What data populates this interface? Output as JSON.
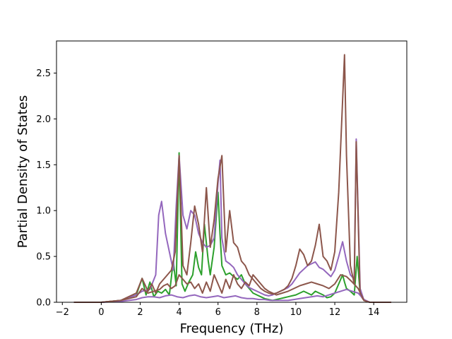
{
  "chart_data": {
    "type": "line",
    "title": "",
    "xlabel": "Frequency (THz)",
    "ylabel": "Partial Density of States",
    "xlim": [
      -2.3,
      15.7
    ],
    "ylim": [
      0,
      2.85
    ],
    "xticks": [
      -2,
      0,
      2,
      4,
      6,
      8,
      10,
      12,
      14
    ],
    "xtick_labels": [
      "−2",
      "0",
      "2",
      "4",
      "6",
      "8",
      "10",
      "12",
      "14"
    ],
    "yticks": [
      0.0,
      0.5,
      1.0,
      1.5,
      2.0,
      2.5
    ],
    "ytick_labels": [
      "0.0",
      "0.5",
      "1.0",
      "1.5",
      "2.0",
      "2.5"
    ],
    "grid": false,
    "legend": "none",
    "series": [
      {
        "color": "#2ca02c",
        "x": [
          -1.4,
          0.0,
          1.0,
          1.8,
          2.1,
          2.3,
          2.5,
          2.7,
          2.9,
          3.1,
          3.3,
          3.5,
          3.7,
          3.85,
          4.0,
          4.15,
          4.3,
          4.5,
          4.7,
          4.85,
          5.0,
          5.15,
          5.3,
          5.5,
          5.6,
          5.8,
          6.0,
          6.1,
          6.2,
          6.4,
          6.6,
          6.8,
          7.0,
          7.2,
          7.4,
          7.6,
          7.8,
          8.0,
          8.2,
          8.4,
          8.6,
          8.8,
          9.0,
          9.2,
          9.4,
          9.6,
          9.8,
          10.0,
          10.2,
          10.4,
          10.6,
          10.8,
          11.0,
          11.2,
          11.4,
          11.6,
          11.8,
          12.0,
          12.2,
          12.4,
          12.5,
          12.6,
          12.8,
          13.0,
          13.15,
          13.3,
          13.5,
          13.8,
          14.0,
          14.9
        ],
        "y": [
          0.0,
          0.0,
          0.02,
          0.08,
          0.26,
          0.08,
          0.22,
          0.06,
          0.12,
          0.1,
          0.14,
          0.08,
          0.45,
          0.18,
          1.63,
          0.2,
          0.12,
          0.22,
          0.3,
          0.55,
          0.38,
          0.3,
          0.85,
          0.45,
          0.3,
          0.6,
          1.2,
          0.75,
          0.4,
          0.3,
          0.32,
          0.28,
          0.25,
          0.3,
          0.2,
          0.15,
          0.1,
          0.08,
          0.06,
          0.04,
          0.03,
          0.02,
          0.03,
          0.04,
          0.05,
          0.06,
          0.07,
          0.08,
          0.1,
          0.12,
          0.1,
          0.08,
          0.12,
          0.1,
          0.08,
          0.05,
          0.06,
          0.1,
          0.2,
          0.3,
          0.22,
          0.15,
          0.12,
          0.08,
          0.5,
          0.1,
          0.02,
          0.0,
          0.0,
          0.0
        ]
      },
      {
        "color": "#9467bd",
        "x": [
          -1.4,
          0.0,
          1.0,
          1.8,
          2.1,
          2.5,
          2.8,
          2.95,
          3.1,
          3.3,
          3.5,
          3.7,
          3.85,
          4.0,
          4.2,
          4.4,
          4.6,
          4.8,
          5.0,
          5.2,
          5.4,
          5.6,
          5.8,
          6.0,
          6.1,
          6.2,
          6.4,
          6.6,
          6.8,
          7.0,
          7.2,
          7.4,
          7.6,
          7.8,
          8.0,
          8.2,
          8.4,
          8.6,
          8.8,
          9.0,
          9.2,
          9.4,
          9.6,
          9.8,
          10.0,
          10.2,
          10.4,
          10.6,
          10.8,
          11.0,
          11.2,
          11.4,
          11.6,
          11.8,
          12.0,
          12.2,
          12.4,
          12.6,
          12.8,
          13.0,
          13.1,
          13.3,
          13.5,
          13.8,
          14.0,
          14.9
        ],
        "y": [
          0.0,
          0.0,
          0.02,
          0.08,
          0.12,
          0.14,
          0.3,
          0.95,
          1.1,
          0.75,
          0.55,
          0.35,
          1.05,
          1.6,
          0.95,
          0.8,
          1.0,
          0.95,
          0.75,
          0.65,
          0.6,
          0.62,
          0.7,
          1.3,
          1.55,
          0.7,
          0.45,
          0.42,
          0.38,
          0.3,
          0.25,
          0.2,
          0.16,
          0.14,
          0.12,
          0.1,
          0.08,
          0.07,
          0.08,
          0.1,
          0.12,
          0.14,
          0.16,
          0.2,
          0.26,
          0.32,
          0.36,
          0.4,
          0.42,
          0.44,
          0.38,
          0.36,
          0.32,
          0.28,
          0.35,
          0.5,
          0.66,
          0.45,
          0.3,
          0.25,
          1.78,
          0.15,
          0.02,
          0.0,
          0.0,
          0.0
        ]
      },
      {
        "color": "#8c564b",
        "x": [
          -1.4,
          0.0,
          1.0,
          1.8,
          2.1,
          2.4,
          2.6,
          2.8,
          3.0,
          3.2,
          3.4,
          3.6,
          3.8,
          4.0,
          4.2,
          4.4,
          4.6,
          4.8,
          5.0,
          5.2,
          5.4,
          5.6,
          5.8,
          6.0,
          6.2,
          6.4,
          6.6,
          6.8,
          7.0,
          7.2,
          7.4,
          7.6,
          7.8,
          8.0,
          8.2,
          8.4,
          8.6,
          8.8,
          9.0,
          9.2,
          9.4,
          9.6,
          9.8,
          10.0,
          10.2,
          10.4,
          10.6,
          10.8,
          11.0,
          11.2,
          11.4,
          11.6,
          11.8,
          12.0,
          12.2,
          12.4,
          12.5,
          12.6,
          12.8,
          13.0,
          13.1,
          13.3,
          13.5,
          13.8,
          14.0,
          14.9
        ],
        "y": [
          0.0,
          0.0,
          0.02,
          0.1,
          0.26,
          0.12,
          0.2,
          0.1,
          0.2,
          0.25,
          0.3,
          0.35,
          0.55,
          1.6,
          0.4,
          0.3,
          0.65,
          1.05,
          0.85,
          0.55,
          1.25,
          0.6,
          0.9,
          1.35,
          1.6,
          0.55,
          1.0,
          0.65,
          0.6,
          0.45,
          0.4,
          0.3,
          0.25,
          0.2,
          0.15,
          0.12,
          0.1,
          0.09,
          0.1,
          0.12,
          0.14,
          0.18,
          0.26,
          0.4,
          0.58,
          0.52,
          0.4,
          0.45,
          0.62,
          0.85,
          0.5,
          0.45,
          0.35,
          0.55,
          1.2,
          2.2,
          2.7,
          1.6,
          0.4,
          0.2,
          1.75,
          0.08,
          0.02,
          0.0,
          0.0,
          0.0
        ]
      },
      {
        "color": "#9467bd",
        "x": [
          -1.4,
          0.0,
          1.0,
          1.8,
          2.1,
          2.4,
          2.7,
          3.0,
          3.3,
          3.6,
          3.9,
          4.2,
          4.5,
          4.8,
          5.1,
          5.4,
          5.7,
          6.0,
          6.3,
          6.6,
          6.9,
          7.2,
          7.5,
          7.8,
          8.1,
          8.4,
          8.7,
          9.0,
          9.3,
          9.6,
          9.9,
          10.2,
          10.5,
          10.8,
          11.1,
          11.4,
          11.7,
          12.0,
          12.3,
          12.6,
          12.9,
          13.2,
          13.5,
          13.8,
          14.0,
          14.9
        ],
        "y": [
          0.0,
          0.0,
          0.01,
          0.03,
          0.05,
          0.06,
          0.06,
          0.05,
          0.07,
          0.08,
          0.06,
          0.05,
          0.07,
          0.08,
          0.06,
          0.05,
          0.06,
          0.07,
          0.05,
          0.06,
          0.07,
          0.05,
          0.04,
          0.04,
          0.03,
          0.03,
          0.02,
          0.02,
          0.02,
          0.02,
          0.03,
          0.04,
          0.05,
          0.06,
          0.07,
          0.06,
          0.08,
          0.1,
          0.12,
          0.14,
          0.12,
          0.1,
          0.03,
          0.0,
          0.0,
          0.0
        ]
      },
      {
        "color": "#8c564b",
        "x": [
          -1.4,
          0.0,
          1.0,
          1.8,
          2.1,
          2.4,
          2.7,
          3.0,
          3.2,
          3.4,
          3.6,
          3.8,
          4.0,
          4.2,
          4.4,
          4.6,
          4.8,
          5.0,
          5.2,
          5.4,
          5.6,
          5.8,
          6.0,
          6.2,
          6.4,
          6.6,
          6.8,
          7.0,
          7.2,
          7.4,
          7.6,
          7.8,
          8.0,
          8.2,
          8.4,
          8.6,
          8.8,
          9.0,
          9.3,
          9.6,
          9.9,
          10.2,
          10.5,
          10.8,
          11.1,
          11.4,
          11.7,
          12.0,
          12.3,
          12.6,
          12.9,
          13.2,
          13.5,
          13.8,
          14.0,
          14.9
        ],
        "y": [
          0.0,
          0.0,
          0.02,
          0.06,
          0.15,
          0.1,
          0.12,
          0.14,
          0.18,
          0.2,
          0.15,
          0.18,
          0.3,
          0.25,
          0.2,
          0.22,
          0.15,
          0.2,
          0.1,
          0.22,
          0.12,
          0.3,
          0.2,
          0.1,
          0.25,
          0.15,
          0.3,
          0.2,
          0.15,
          0.22,
          0.18,
          0.3,
          0.25,
          0.2,
          0.15,
          0.12,
          0.1,
          0.08,
          0.1,
          0.12,
          0.15,
          0.18,
          0.2,
          0.22,
          0.2,
          0.18,
          0.15,
          0.2,
          0.3,
          0.28,
          0.22,
          0.15,
          0.02,
          0.0,
          0.0,
          0.0
        ]
      }
    ]
  }
}
